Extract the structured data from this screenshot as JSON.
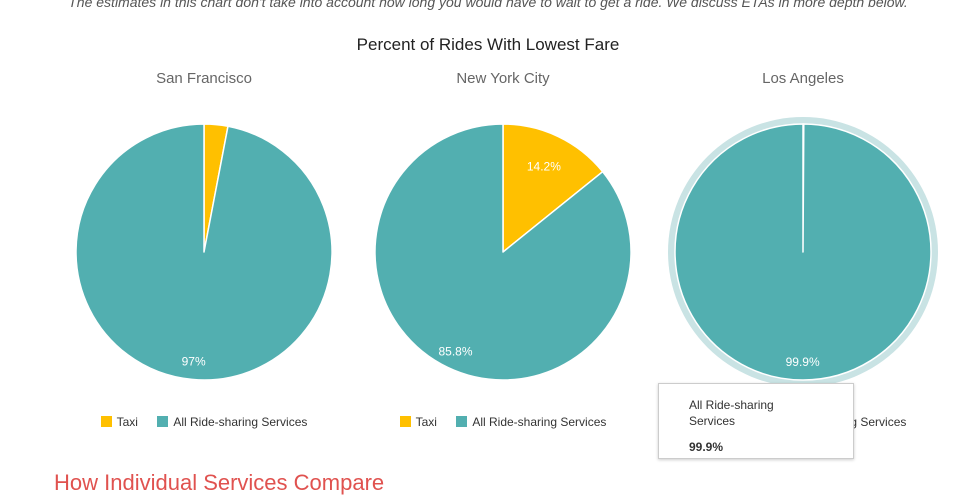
{
  "intro_text": "The estimates in this chart don't take into account how long you would have to wait to get a ride. We discuss ETAs in more depth below.",
  "next_heading": "How Individual Services Compare",
  "colors": {
    "taxi": "#FFC000",
    "rideshare": "#52AFB0",
    "hover_ring": "#c9e3e4"
  },
  "tooltip": {
    "name": "All Ride-sharing Services",
    "value": "99.9%"
  },
  "chart_data": {
    "type": "pie",
    "title": "Percent of Rides With Lowest Fare",
    "legend": [
      "Taxi",
      "All Ride-sharing Services"
    ],
    "legend_placement": "bottom",
    "charts": [
      {
        "title": "San Francisco",
        "slices": [
          {
            "name": "Taxi",
            "value": 3,
            "label": ""
          },
          {
            "name": "All Ride-sharing Services",
            "value": 97,
            "label": "97%"
          }
        ]
      },
      {
        "title": "New York City",
        "slices": [
          {
            "name": "Taxi",
            "value": 14.2,
            "label": "14.2%"
          },
          {
            "name": "All Ride-sharing Services",
            "value": 85.8,
            "label": "85.8%"
          }
        ]
      },
      {
        "title": "Los Angeles",
        "slices": [
          {
            "name": "Taxi",
            "value": 0.1,
            "label": ""
          },
          {
            "name": "All Ride-sharing Services",
            "value": 99.9,
            "label": "99.9%"
          }
        ]
      }
    ]
  }
}
